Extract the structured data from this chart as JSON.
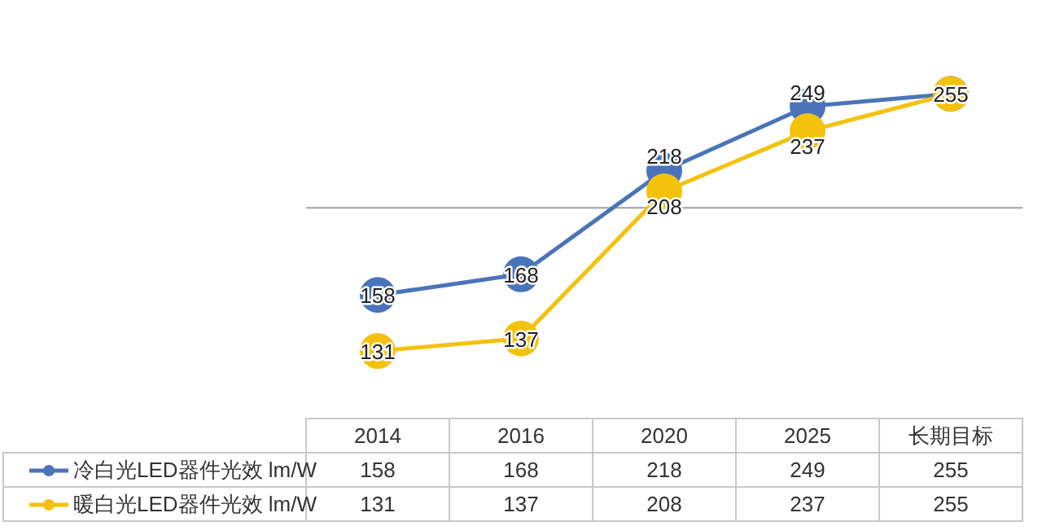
{
  "chart_data": {
    "type": "line",
    "categories": [
      "2014",
      "2016",
      "2020",
      "2025",
      "长期目标"
    ],
    "series": [
      {
        "name": "冷白光LED器件光效 lm/W",
        "color": "#4a74ba",
        "values": [
          158,
          168,
          218,
          249,
          255
        ]
      },
      {
        "name": "暖白光LED器件光效 lm/W",
        "color": "#f4c20d",
        "values": [
          131,
          137,
          208,
          237,
          255
        ]
      }
    ],
    "annotations": [
      {
        "text": "158",
        "x": "2014",
        "y": 158
      },
      {
        "text": "168",
        "x": "2016",
        "y": 168
      },
      {
        "text": "218",
        "x": "2020",
        "y": 218
      },
      {
        "text": "249",
        "x": "2025",
        "y": 249
      },
      {
        "text": "131",
        "x": "2014",
        "y": 131
      },
      {
        "text": "137",
        "x": "2016",
        "y": 137
      },
      {
        "text": "208",
        "x": "2020",
        "y": 208
      },
      {
        "text": "237",
        "x": "2025",
        "y": 237
      },
      {
        "text": "255",
        "x": "长期目标",
        "y": 255
      }
    ],
    "ref_lines": [
      {
        "axis": "y",
        "value": 200,
        "color": "#a0a0a0"
      }
    ],
    "data_labels": true,
    "marker": "circle",
    "line_style": "solid",
    "legend": "bottom"
  }
}
